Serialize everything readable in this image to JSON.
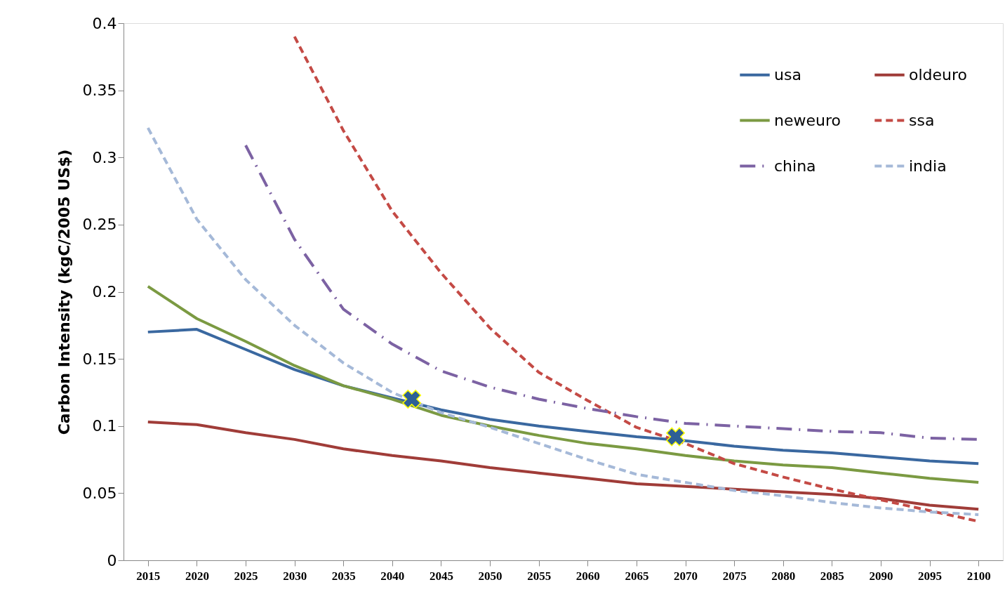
{
  "chart_data": {
    "type": "line",
    "ylabel": "Carbon Intensity (kgC/2005 US$)",
    "x": [
      2015,
      2020,
      2025,
      2030,
      2035,
      2040,
      2045,
      2050,
      2055,
      2060,
      2065,
      2070,
      2075,
      2080,
      2085,
      2090,
      2095,
      2100
    ],
    "xlim": [
      2012.5,
      2102.5
    ],
    "xticks": [
      2015,
      2020,
      2025,
      2030,
      2035,
      2040,
      2045,
      2050,
      2055,
      2060,
      2065,
      2070,
      2075,
      2080,
      2085,
      2090,
      2095,
      2100
    ],
    "ylim": [
      0,
      0.4
    ],
    "yticks": [
      0,
      0.05,
      0.1,
      0.15,
      0.2,
      0.25,
      0.3,
      0.35,
      0.4
    ],
    "grid": false,
    "legend": "top right",
    "marker": "none",
    "series": [
      {
        "name": "usa",
        "color": "#3a68a0",
        "line_style": "solid",
        "values": [
          0.17,
          0.172,
          0.157,
          0.142,
          0.13,
          0.121,
          0.112,
          0.105,
          0.1,
          0.096,
          0.092,
          0.089,
          0.085,
          0.082,
          0.08,
          0.077,
          0.074,
          0.072
        ]
      },
      {
        "name": "oldeuro",
        "color": "#a03c38",
        "line_style": "solid",
        "values": [
          0.103,
          0.101,
          0.095,
          0.09,
          0.083,
          0.078,
          0.074,
          0.069,
          0.065,
          0.061,
          0.057,
          0.055,
          0.053,
          0.051,
          0.049,
          0.046,
          0.041,
          0.038
        ]
      },
      {
        "name": "neweuro",
        "color": "#7b9a42",
        "line_style": "solid",
        "values": [
          0.204,
          0.18,
          0.163,
          0.145,
          0.13,
          0.12,
          0.108,
          0.1,
          0.093,
          0.087,
          0.083,
          0.078,
          0.074,
          0.071,
          0.069,
          0.065,
          0.061,
          0.058
        ]
      },
      {
        "name": "ssa",
        "color": "#c44a45",
        "line_style": "dashed",
        "values": [
          null,
          null,
          null,
          0.39,
          0.32,
          0.26,
          0.214,
          0.173,
          0.14,
          0.119,
          0.099,
          0.087,
          0.072,
          0.062,
          0.053,
          0.045,
          0.037,
          0.029
        ]
      },
      {
        "name": "china",
        "color": "#7c62a3",
        "line_style": "dashdot",
        "values": [
          null,
          null,
          0.309,
          0.239,
          0.187,
          0.161,
          0.141,
          0.129,
          0.12,
          0.113,
          0.107,
          0.102,
          0.1,
          0.098,
          0.096,
          0.095,
          0.091,
          0.09
        ]
      },
      {
        "name": "india",
        "color": "#a5b9d8",
        "line_style": "dashed",
        "values": [
          0.322,
          0.254,
          0.209,
          0.175,
          0.147,
          0.125,
          0.11,
          0.099,
          0.087,
          0.075,
          0.064,
          0.058,
          0.052,
          0.048,
          0.043,
          0.039,
          0.036,
          0.034
        ]
      },
      {
        "type": "scatter",
        "marker": "cross",
        "color": "#2e5f96",
        "x": [
          2042,
          2069
        ],
        "values": [
          0.12,
          0.092
        ]
      }
    ]
  }
}
